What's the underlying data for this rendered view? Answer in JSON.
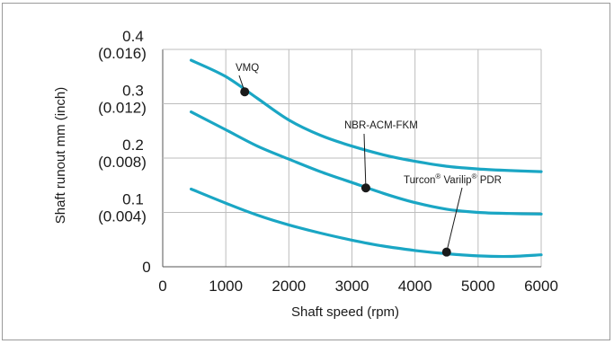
{
  "chart_data": {
    "type": "line",
    "title": "",
    "xlabel": "Shaft speed (rpm)",
    "ylabel": "Shaft runout mm (inch)",
    "xlim": [
      0,
      6000
    ],
    "ylim": [
      0,
      0.4
    ],
    "grid": true,
    "x_ticks": [
      "0",
      "1000",
      "2000",
      "3000",
      "4000",
      "5000",
      "6000"
    ],
    "y_ticks": [
      {
        "value": 0,
        "label": "0",
        "sublabel": ""
      },
      {
        "value": 0.1,
        "label": "0.1",
        "sublabel": "(0.004)"
      },
      {
        "value": 0.2,
        "label": "0.2",
        "sublabel": "(0.008)"
      },
      {
        "value": 0.3,
        "label": "0.3",
        "sublabel": "(0.012)"
      },
      {
        "value": 0.4,
        "label": "0.4",
        "sublabel": "(0.016)"
      }
    ],
    "series": [
      {
        "name": "VMQ",
        "color": "#1aa6c4",
        "x": [
          450,
          1000,
          1500,
          2000,
          2500,
          3000,
          3500,
          4000,
          4500,
          5000,
          5500,
          6000
        ],
        "values": [
          0.38,
          0.35,
          0.31,
          0.27,
          0.242,
          0.222,
          0.206,
          0.194,
          0.185,
          0.18,
          0.177,
          0.175
        ],
        "marker": {
          "x": 1300,
          "y": 0.322
        }
      },
      {
        "name": "NBR-ACM-FKM",
        "color": "#1aa6c4",
        "x": [
          450,
          1000,
          1500,
          2000,
          2500,
          3000,
          3500,
          4000,
          4500,
          5000,
          5500,
          6000
        ],
        "values": [
          0.285,
          0.252,
          0.222,
          0.198,
          0.175,
          0.155,
          0.135,
          0.118,
          0.106,
          0.1,
          0.098,
          0.097
        ],
        "marker": {
          "x": 3220,
          "y": 0.145
        }
      },
      {
        "name": "Turcon Varilip PDR",
        "color": "#1aa6c4",
        "x": [
          450,
          1000,
          1500,
          2000,
          2500,
          3000,
          3500,
          4000,
          4500,
          5000,
          5500,
          6000
        ],
        "values": [
          0.143,
          0.117,
          0.095,
          0.077,
          0.062,
          0.049,
          0.038,
          0.03,
          0.024,
          0.02,
          0.019,
          0.022
        ],
        "marker": {
          "x": 4500,
          "y": 0.027
        }
      }
    ],
    "annotations": [
      {
        "label": "VMQ"
      },
      {
        "label": "NBR-ACM-FKM"
      },
      {
        "parts": [
          "Turcon",
          "®",
          " Varilip",
          "®",
          " PDR"
        ]
      }
    ]
  }
}
